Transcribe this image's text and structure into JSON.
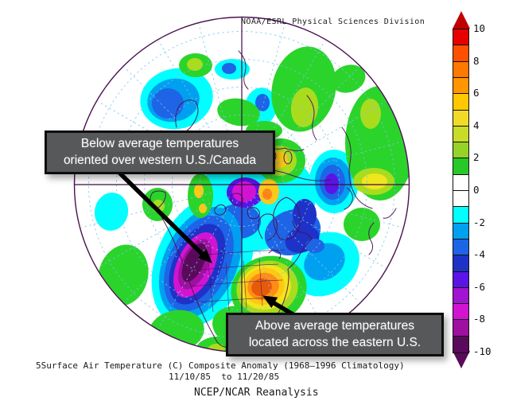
{
  "figure": {
    "source_label": "NOAA/ESRL Physical Sciences Division",
    "caption_line1": "5Surface Air Temperature (C) Composite Anomaly (1968–1996 Climatology)",
    "caption_line2": "11/10/85  to 11/20/85",
    "caption_line3": "NCEP/NCAR Reanalysis"
  },
  "annotations": {
    "below_average": {
      "line1": "Below average temperatures",
      "line2": "oriented over western U.S./Canada"
    },
    "above_average": {
      "line1": "Above average temperatures",
      "line2": "located across the eastern U.S."
    }
  },
  "colorbar": {
    "ticks": [
      "10",
      "8",
      "6",
      "4",
      "2",
      "0",
      "-2",
      "-4",
      "-6",
      "-8",
      "-10"
    ],
    "cells": [
      "#e60000",
      "#ff5000",
      "#ff7800",
      "#ff9600",
      "#ffc800",
      "#f0dc28",
      "#c8dc28",
      "#96d228",
      "#28c828",
      "#ffffff",
      "#ffffff",
      "#00ffff",
      "#00a0f0",
      "#1e64e6",
      "#1e32c8",
      "#5a14e6",
      "#a014d2",
      "#d214d2",
      "#a010a0",
      "#5a0a5a"
    ],
    "top_arrow_color": "#c00000",
    "bottom_arrow_color": "#5a0a5a"
  }
}
